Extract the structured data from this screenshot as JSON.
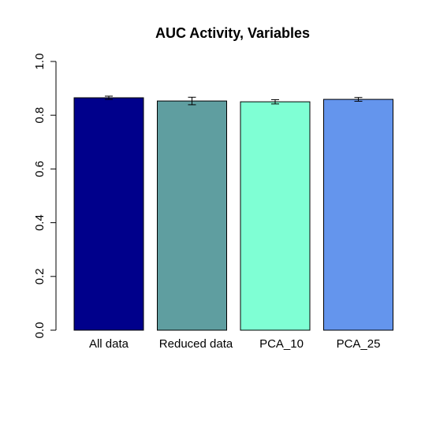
{
  "chart_data": {
    "type": "bar",
    "title": "AUC Activity, Variables",
    "xlabel": "",
    "ylabel": "",
    "ylim": [
      0,
      1
    ],
    "yticks": [
      "0.0",
      "0.2",
      "0.4",
      "0.6",
      "0.8",
      "1.0"
    ],
    "categories": [
      "All data",
      "Reduced data",
      "PCA_10",
      "PCA_25"
    ],
    "values": [
      0.865,
      0.853,
      0.85,
      0.859
    ],
    "error": [
      0.006,
      0.014,
      0.008,
      0.007
    ],
    "colors": [
      "#00008B",
      "#5F9EA0",
      "#7FFFD4",
      "#6495ED"
    ],
    "grid": false,
    "legend": "none"
  }
}
